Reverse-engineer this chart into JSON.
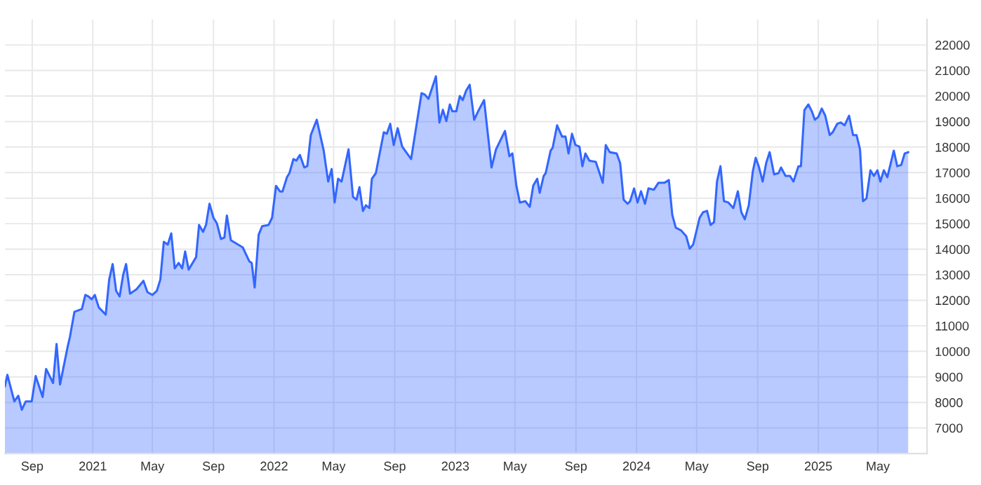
{
  "chart_data": {
    "type": "area",
    "x": [
      "2020-07-08",
      "2020-07-13",
      "2020-07-27",
      "2020-08-04",
      "2020-08-11",
      "2020-08-19",
      "2020-08-31",
      "2020-09-08",
      "2020-09-22",
      "2020-09-29",
      "2020-10-13",
      "2020-10-20",
      "2020-10-27",
      "2020-11-12",
      "2020-11-16",
      "2020-11-25",
      "2020-12-10",
      "2020-12-17",
      "2020-12-23",
      "2020-12-30",
      "2021-01-05",
      "2021-01-13",
      "2021-01-27",
      "2021-02-03",
      "2021-02-10",
      "2021-02-17",
      "2021-02-24",
      "2021-03-03",
      "2021-03-09",
      "2021-03-17",
      "2021-03-30",
      "2021-04-13",
      "2021-04-21",
      "2021-05-01",
      "2021-05-10",
      "2021-05-17",
      "2021-05-24",
      "2021-06-01",
      "2021-06-08",
      "2021-06-15",
      "2021-06-23",
      "2021-06-30",
      "2021-07-06",
      "2021-07-13",
      "2021-07-28",
      "2021-08-03",
      "2021-08-11",
      "2021-08-17",
      "2021-08-24",
      "2021-09-01",
      "2021-09-08",
      "2021-09-16",
      "2021-09-23",
      "2021-09-28",
      "2021-10-06",
      "2021-10-30",
      "2021-11-12",
      "2021-11-17",
      "2021-11-23",
      "2021-12-01",
      "2021-12-08",
      "2021-12-21",
      "2021-12-28",
      "2022-01-05",
      "2022-01-13",
      "2022-01-18",
      "2022-01-27",
      "2022-02-01",
      "2022-02-09",
      "2022-02-15",
      "2022-02-22",
      "2022-03-03",
      "2022-03-09",
      "2022-03-16",
      "2022-03-28",
      "2022-04-11",
      "2022-04-20",
      "2022-04-27",
      "2022-05-03",
      "2022-05-10",
      "2022-05-17",
      "2022-05-31",
      "2022-06-09",
      "2022-06-16",
      "2022-06-22",
      "2022-06-29",
      "2022-07-05",
      "2022-07-12",
      "2022-07-17",
      "2022-07-25",
      "2022-08-10",
      "2022-08-16",
      "2022-08-23",
      "2022-08-30",
      "2022-09-07",
      "2022-09-16",
      "2022-10-04",
      "2022-10-25",
      "2022-11-01",
      "2022-11-08",
      "2022-11-23",
      "2022-11-30",
      "2022-12-07",
      "2022-12-14",
      "2022-12-21",
      "2022-12-26",
      "2023-01-03",
      "2023-01-10",
      "2023-01-16",
      "2023-01-23",
      "2023-01-30",
      "2023-02-08",
      "2023-02-16",
      "2023-02-28",
      "2023-03-15",
      "2023-03-24",
      "2023-04-11",
      "2023-04-20",
      "2023-04-26",
      "2023-05-04",
      "2023-05-11",
      "2023-05-22",
      "2023-05-31",
      "2023-06-07",
      "2023-06-15",
      "2023-06-20",
      "2023-06-28",
      "2023-07-02",
      "2023-07-12",
      "2023-07-16",
      "2023-07-25",
      "2023-08-04",
      "2023-08-11",
      "2023-08-17",
      "2023-08-24",
      "2023-08-31",
      "2023-09-08",
      "2023-09-14",
      "2023-09-20",
      "2023-09-28",
      "2023-10-11",
      "2023-10-25",
      "2023-10-31",
      "2023-11-08",
      "2023-11-22",
      "2023-11-29",
      "2023-12-06",
      "2023-12-14",
      "2023-12-19",
      "2023-12-27",
      "2024-01-03",
      "2024-01-10",
      "2024-01-18",
      "2024-01-25",
      "2024-02-05",
      "2024-02-14",
      "2024-02-26",
      "2024-03-06",
      "2024-03-13",
      "2024-03-20",
      "2024-03-31",
      "2024-04-10",
      "2024-04-17",
      "2024-04-24",
      "2024-05-07",
      "2024-05-14",
      "2024-05-22",
      "2024-05-29",
      "2024-06-05",
      "2024-06-11",
      "2024-06-18",
      "2024-06-25",
      "2024-07-04",
      "2024-07-14",
      "2024-07-23",
      "2024-07-30",
      "2024-08-06",
      "2024-08-14",
      "2024-08-22",
      "2024-08-28",
      "2024-09-03",
      "2024-09-11",
      "2024-09-18",
      "2024-09-25",
      "2024-10-04",
      "2024-10-13",
      "2024-10-18",
      "2024-10-27",
      "2024-11-05",
      "2024-11-12",
      "2024-11-22",
      "2024-11-27",
      "2024-12-04",
      "2024-12-12",
      "2024-12-19",
      "2024-12-25",
      "2025-01-01",
      "2025-01-08",
      "2025-01-15",
      "2025-01-24",
      "2025-01-30",
      "2025-02-08",
      "2025-02-15",
      "2025-02-23",
      "2025-03-04",
      "2025-03-12",
      "2025-03-19",
      "2025-03-26",
      "2025-04-01",
      "2025-04-08",
      "2025-04-16",
      "2025-04-23",
      "2025-04-30",
      "2025-05-06",
      "2025-05-13",
      "2025-05-20",
      "2025-06-02",
      "2025-06-09",
      "2025-06-17",
      "2025-06-24",
      "2025-07-01"
    ],
    "series": [
      {
        "color": "#3366ff",
        "values": [
          8640,
          9080,
          8040,
          8260,
          7710,
          8040,
          8040,
          9030,
          8210,
          9310,
          8760,
          10290,
          8700,
          10240,
          10570,
          11550,
          11660,
          12210,
          12150,
          12040,
          12210,
          11720,
          11440,
          12810,
          13420,
          12370,
          12150,
          12980,
          13420,
          12260,
          12430,
          12760,
          12320,
          12210,
          12370,
          12810,
          14290,
          14180,
          14620,
          13250,
          13460,
          13250,
          13910,
          13200,
          13690,
          14950,
          14680,
          14950,
          15780,
          15230,
          15010,
          14400,
          14460,
          15320,
          14350,
          14070,
          13530,
          13460,
          12500,
          14570,
          14900,
          14950,
          15230,
          16480,
          16260,
          16260,
          16820,
          16980,
          17530,
          17470,
          17690,
          17200,
          17260,
          18470,
          19070,
          17860,
          16650,
          17140,
          15830,
          16760,
          16650,
          17910,
          16050,
          15940,
          16430,
          15500,
          15720,
          15610,
          16760,
          16980,
          18580,
          18520,
          18910,
          18080,
          18740,
          18020,
          17530,
          20110,
          20050,
          19890,
          20770,
          18960,
          19460,
          19020,
          19670,
          19400,
          19400,
          20000,
          19840,
          20220,
          20440,
          19070,
          19400,
          19840,
          17200,
          17910,
          18630,
          17640,
          17750,
          16490,
          15830,
          15880,
          15660,
          16490,
          16760,
          16210,
          16870,
          16980,
          17860,
          17970,
          18850,
          18410,
          18410,
          17750,
          18520,
          18080,
          18020,
          17250,
          17750,
          17470,
          17420,
          16600,
          18080,
          17800,
          17750,
          17370,
          15940,
          15780,
          15880,
          16380,
          15830,
          16270,
          15780,
          16380,
          16330,
          16600,
          16600,
          16710,
          15340,
          14840,
          14730,
          14510,
          14020,
          14180,
          15230,
          15450,
          15500,
          14950,
          15060,
          16650,
          17250,
          15880,
          15830,
          15610,
          16270,
          15450,
          15170,
          15720,
          17030,
          17580,
          17250,
          16650,
          17370,
          17800,
          16930,
          16980,
          17200,
          16870,
          16870,
          16650,
          17250,
          17250,
          19450,
          19670,
          19400,
          19070,
          19180,
          19510,
          19230,
          18470,
          18580,
          18910,
          18960,
          18850,
          19230,
          18470,
          18470,
          17910,
          15880,
          15990,
          17090,
          16870,
          17090,
          16650,
          17090,
          16820,
          17860,
          17250,
          17300,
          17750,
          17800
        ]
      }
    ],
    "xlim": [
      "2020-07-08",
      "2025-08-08"
    ],
    "xticks": [
      {
        "value": "2020-09-01",
        "label": "Sep"
      },
      {
        "value": "2021-01-01",
        "label": "2021"
      },
      {
        "value": "2021-05-01",
        "label": "May"
      },
      {
        "value": "2021-09-01",
        "label": "Sep"
      },
      {
        "value": "2022-01-01",
        "label": "2022"
      },
      {
        "value": "2022-05-01",
        "label": "May"
      },
      {
        "value": "2022-09-01",
        "label": "Sep"
      },
      {
        "value": "2023-01-01",
        "label": "2023"
      },
      {
        "value": "2023-05-01",
        "label": "May"
      },
      {
        "value": "2023-09-01",
        "label": "Sep"
      },
      {
        "value": "2024-01-01",
        "label": "2024"
      },
      {
        "value": "2024-05-01",
        "label": "May"
      },
      {
        "value": "2024-09-01",
        "label": "Sep"
      },
      {
        "value": "2025-01-01",
        "label": "2025"
      },
      {
        "value": "2025-05-01",
        "label": "May"
      }
    ],
    "ylim": [
      6000,
      23000
    ],
    "yticks": [
      7000,
      8000,
      9000,
      10000,
      11000,
      12000,
      13000,
      14000,
      15000,
      16000,
      17000,
      18000,
      19000,
      20000,
      21000,
      22000
    ],
    "grid": true,
    "legend": false
  }
}
